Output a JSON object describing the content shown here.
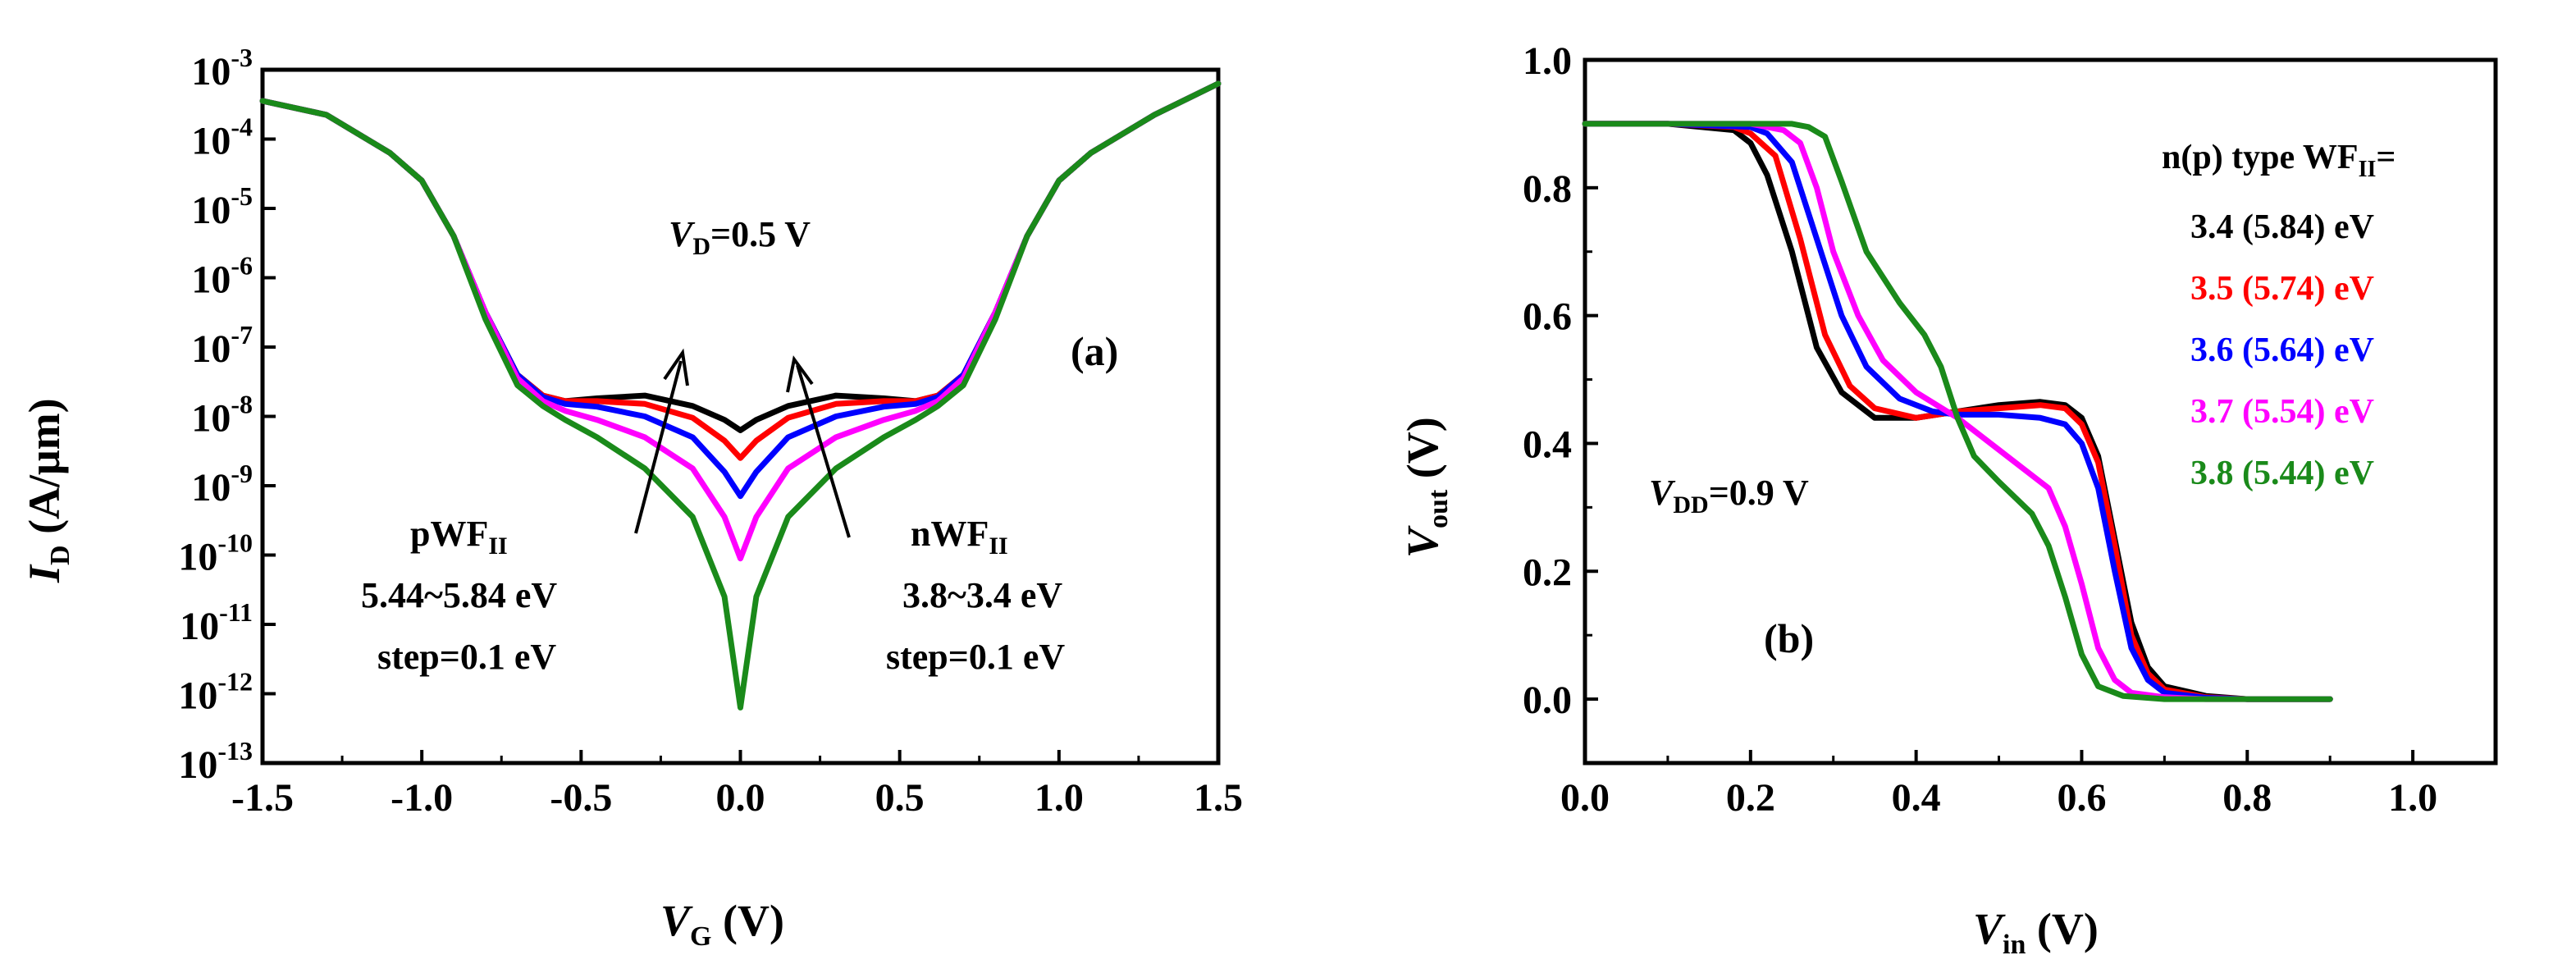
{
  "chart_data": [
    {
      "type": "line",
      "panel_label": "(a)",
      "xlabel": {
        "main": "V",
        "sub": "G",
        "unit": " (V)"
      },
      "ylabel": {
        "main": "I",
        "sub": "D",
        "unit": " (A/μm)"
      },
      "xlim": [
        -1.5,
        1.5
      ],
      "ylim_log10": [
        -13,
        -3
      ],
      "x_ticks": [
        "-1.5",
        "-1.0",
        "-0.5",
        "0.0",
        "0.5",
        "1.0",
        "1.5"
      ],
      "x_tick_values": [
        -1.5,
        -1.0,
        -0.5,
        0.0,
        0.5,
        1.0,
        1.5
      ],
      "y_tick_exponents": [
        "-3",
        "-4",
        "-5",
        "-6",
        "-7",
        "-8",
        "-9",
        "-10",
        "-11",
        "-12",
        "-13"
      ],
      "y_tick_base": "10",
      "annotations": {
        "vd": {
          "main": "V",
          "sub": "D",
          "rest": "=0.5 V"
        },
        "pwf": {
          "main": "pWF",
          "sub": "II",
          "line2": "5.44~5.84 eV",
          "line3": "step=0.1 eV"
        },
        "nwf": {
          "main": "nWF",
          "sub": "II",
          "line2": "3.8~3.4 eV",
          "line3": "step=0.1 eV"
        }
      },
      "series": [
        {
          "name": "3.4 (5.84) eV",
          "color": "#000000",
          "x": [
            -1.5,
            -1.3,
            -1.1,
            -1.0,
            -0.9,
            -0.8,
            -0.7,
            -0.62,
            -0.55,
            -0.45,
            -0.3,
            -0.15,
            -0.05,
            0.0,
            0.05,
            0.15,
            0.3,
            0.45,
            0.55,
            0.62,
            0.7,
            0.8,
            0.9,
            1.0,
            1.1,
            1.3,
            1.5
          ],
          "log10": [
            -3.45,
            -3.65,
            -4.2,
            -4.6,
            -5.4,
            -6.5,
            -7.4,
            -7.7,
            -7.78,
            -7.74,
            -7.7,
            -7.85,
            -8.05,
            -8.2,
            -8.05,
            -7.85,
            -7.7,
            -7.74,
            -7.78,
            -7.7,
            -7.4,
            -6.5,
            -5.4,
            -4.6,
            -4.2,
            -3.65,
            -3.2
          ]
        },
        {
          "name": "3.5 (5.74) eV",
          "color": "#ff0000",
          "x": [
            -1.5,
            -1.3,
            -1.1,
            -1.0,
            -0.9,
            -0.8,
            -0.7,
            -0.62,
            -0.55,
            -0.45,
            -0.3,
            -0.15,
            -0.05,
            0.0,
            0.05,
            0.15,
            0.3,
            0.45,
            0.55,
            0.62,
            0.7,
            0.8,
            0.9,
            1.0,
            1.1,
            1.3,
            1.5
          ],
          "log10": [
            -3.45,
            -3.65,
            -4.2,
            -4.6,
            -5.4,
            -6.5,
            -7.4,
            -7.7,
            -7.78,
            -7.78,
            -7.82,
            -8.02,
            -8.35,
            -8.6,
            -8.35,
            -8.02,
            -7.82,
            -7.78,
            -7.78,
            -7.7,
            -7.4,
            -6.5,
            -5.4,
            -4.6,
            -4.2,
            -3.65,
            -3.2
          ]
        },
        {
          "name": "3.6 (5.64) eV",
          "color": "#0000ff",
          "x": [
            -1.5,
            -1.3,
            -1.1,
            -1.0,
            -0.9,
            -0.8,
            -0.7,
            -0.62,
            -0.55,
            -0.45,
            -0.3,
            -0.15,
            -0.05,
            0.0,
            0.05,
            0.15,
            0.3,
            0.45,
            0.55,
            0.62,
            0.7,
            0.8,
            0.9,
            1.0,
            1.1,
            1.3,
            1.5
          ],
          "log10": [
            -3.45,
            -3.65,
            -4.2,
            -4.6,
            -5.4,
            -6.5,
            -7.4,
            -7.72,
            -7.82,
            -7.86,
            -8.0,
            -8.3,
            -8.8,
            -9.15,
            -8.8,
            -8.3,
            -8.0,
            -7.86,
            -7.82,
            -7.72,
            -7.4,
            -6.5,
            -5.4,
            -4.6,
            -4.2,
            -3.65,
            -3.2
          ]
        },
        {
          "name": "3.7 (5.54) eV",
          "color": "#ff00ff",
          "x": [
            -1.5,
            -1.3,
            -1.1,
            -1.0,
            -0.9,
            -0.8,
            -0.7,
            -0.62,
            -0.55,
            -0.45,
            -0.3,
            -0.15,
            -0.05,
            0.0,
            0.05,
            0.15,
            0.3,
            0.45,
            0.55,
            0.62,
            0.7,
            0.8,
            0.9,
            1.0,
            1.1,
            1.3,
            1.5
          ],
          "log10": [
            -3.45,
            -3.65,
            -4.2,
            -4.6,
            -5.4,
            -6.5,
            -7.45,
            -7.78,
            -7.92,
            -8.05,
            -8.3,
            -8.75,
            -9.45,
            -10.05,
            -9.45,
            -8.75,
            -8.3,
            -8.05,
            -7.92,
            -7.78,
            -7.45,
            -6.5,
            -5.4,
            -4.6,
            -4.2,
            -3.65,
            -3.2
          ]
        },
        {
          "name": "3.8 (5.44) eV",
          "color": "#1a8a1a",
          "x": [
            -1.5,
            -1.3,
            -1.1,
            -1.0,
            -0.9,
            -0.8,
            -0.7,
            -0.62,
            -0.55,
            -0.45,
            -0.3,
            -0.15,
            -0.05,
            0.0,
            0.05,
            0.15,
            0.3,
            0.45,
            0.55,
            0.62,
            0.7,
            0.8,
            0.9,
            1.0,
            1.1,
            1.3,
            1.5
          ],
          "log10": [
            -3.45,
            -3.65,
            -4.2,
            -4.6,
            -5.4,
            -6.6,
            -7.55,
            -7.85,
            -8.05,
            -8.3,
            -8.75,
            -9.45,
            -10.6,
            -12.2,
            -10.6,
            -9.45,
            -8.75,
            -8.3,
            -8.05,
            -7.85,
            -7.55,
            -6.6,
            -5.4,
            -4.6,
            -4.2,
            -3.65,
            -3.2
          ]
        }
      ]
    },
    {
      "type": "line",
      "panel_label": "(b)",
      "xlabel": {
        "main": "V",
        "sub": "in",
        "unit": " (V)"
      },
      "ylabel": {
        "main": "V",
        "sub": "out",
        "unit": " (V)"
      },
      "xlim": [
        0.0,
        1.1
      ],
      "ylim": [
        -0.1,
        1.0
      ],
      "x_ticks": [
        "0.0",
        "0.2",
        "0.4",
        "0.6",
        "0.8",
        "1.0"
      ],
      "x_tick_values": [
        0.0,
        0.2,
        0.4,
        0.6,
        0.8,
        1.0
      ],
      "y_ticks": [
        "0.0",
        "0.2",
        "0.4",
        "0.6",
        "0.8",
        "1.0"
      ],
      "y_tick_values": [
        0.0,
        0.2,
        0.4,
        0.6,
        0.8,
        1.0
      ],
      "annotations": {
        "vdd": {
          "main": "V",
          "sub": "DD",
          "rest": "=0.9 V"
        }
      },
      "legend": {
        "title_main": "n(p) type WF",
        "title_sub": "II",
        "title_end": "=",
        "position": "top-right"
      },
      "series": [
        {
          "name": "3.4 (5.84) eV",
          "color": "#000000",
          "x": [
            0.0,
            0.1,
            0.18,
            0.2,
            0.22,
            0.25,
            0.28,
            0.31,
            0.35,
            0.4,
            0.45,
            0.5,
            0.55,
            0.58,
            0.6,
            0.62,
            0.64,
            0.66,
            0.68,
            0.7,
            0.75,
            0.8,
            0.9
          ],
          "y": [
            0.9,
            0.9,
            0.89,
            0.87,
            0.82,
            0.7,
            0.55,
            0.48,
            0.44,
            0.44,
            0.45,
            0.46,
            0.465,
            0.46,
            0.44,
            0.38,
            0.25,
            0.12,
            0.05,
            0.02,
            0.005,
            0.0,
            0.0
          ]
        },
        {
          "name": "3.5 (5.74) eV",
          "color": "#ff0000",
          "x": [
            0.0,
            0.1,
            0.18,
            0.2,
            0.23,
            0.26,
            0.29,
            0.32,
            0.35,
            0.4,
            0.45,
            0.5,
            0.55,
            0.58,
            0.6,
            0.62,
            0.64,
            0.66,
            0.68,
            0.7,
            0.75,
            0.8,
            0.9
          ],
          "y": [
            0.9,
            0.9,
            0.895,
            0.885,
            0.85,
            0.72,
            0.57,
            0.49,
            0.455,
            0.44,
            0.45,
            0.455,
            0.46,
            0.455,
            0.43,
            0.37,
            0.24,
            0.1,
            0.04,
            0.015,
            0.003,
            0.0,
            0.0
          ]
        },
        {
          "name": "3.6 (5.64) eV",
          "color": "#0000ff",
          "x": [
            0.0,
            0.1,
            0.2,
            0.22,
            0.25,
            0.28,
            0.31,
            0.34,
            0.38,
            0.42,
            0.45,
            0.5,
            0.55,
            0.58,
            0.6,
            0.62,
            0.64,
            0.66,
            0.68,
            0.7,
            0.75,
            0.8,
            0.9
          ],
          "y": [
            0.9,
            0.9,
            0.895,
            0.885,
            0.84,
            0.72,
            0.6,
            0.52,
            0.47,
            0.45,
            0.445,
            0.445,
            0.44,
            0.43,
            0.4,
            0.33,
            0.2,
            0.08,
            0.03,
            0.01,
            0.002,
            0.0,
            0.0
          ]
        },
        {
          "name": "3.7 (5.54) eV",
          "color": "#ff00ff",
          "x": [
            0.0,
            0.1,
            0.2,
            0.24,
            0.26,
            0.28,
            0.3,
            0.33,
            0.36,
            0.4,
            0.45,
            0.5,
            0.53,
            0.56,
            0.58,
            0.6,
            0.62,
            0.64,
            0.66,
            0.7,
            0.75,
            0.8,
            0.9
          ],
          "y": [
            0.9,
            0.9,
            0.9,
            0.89,
            0.87,
            0.8,
            0.7,
            0.6,
            0.53,
            0.48,
            0.44,
            0.39,
            0.36,
            0.33,
            0.27,
            0.18,
            0.08,
            0.03,
            0.01,
            0.003,
            0.0,
            0.0,
            0.0
          ]
        },
        {
          "name": "3.8 (5.44) eV",
          "color": "#1a8a1a",
          "x": [
            0.0,
            0.1,
            0.2,
            0.25,
            0.27,
            0.29,
            0.31,
            0.34,
            0.38,
            0.41,
            0.43,
            0.45,
            0.47,
            0.5,
            0.54,
            0.56,
            0.58,
            0.6,
            0.62,
            0.65,
            0.7,
            0.8,
            0.9
          ],
          "y": [
            0.9,
            0.9,
            0.9,
            0.9,
            0.895,
            0.88,
            0.81,
            0.7,
            0.62,
            0.57,
            0.52,
            0.44,
            0.38,
            0.34,
            0.29,
            0.24,
            0.16,
            0.07,
            0.02,
            0.005,
            0.0,
            0.0,
            0.0
          ]
        }
      ]
    }
  ]
}
